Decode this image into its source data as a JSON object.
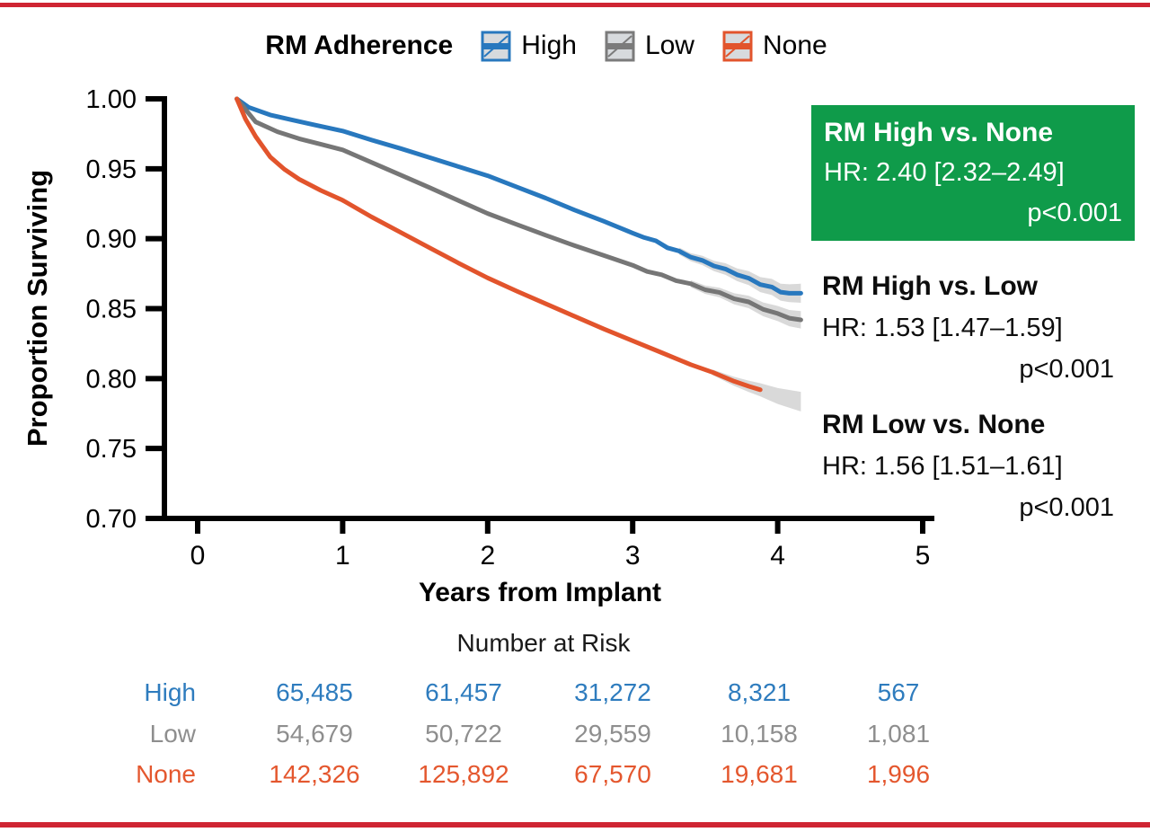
{
  "figure": {
    "colors": {
      "border_red": "#CF2533",
      "green_box": "#0F9B4A",
      "axis_black": "#000000",
      "ci_band_gray": "#D9D9D9"
    }
  },
  "legend": {
    "title": "RM Adherence",
    "items": [
      {
        "id": "high",
        "label": "High",
        "color": "#2878BE"
      },
      {
        "id": "low",
        "label": "Low",
        "color": "#7B7B7B"
      },
      {
        "id": "none",
        "label": "None",
        "color": "#E2542C"
      }
    ]
  },
  "chart_data": {
    "type": "line",
    "title": "",
    "xlabel": "Years from Implant",
    "ylabel": "Proportion Surviving",
    "xlim": [
      0,
      5
    ],
    "ylim": [
      0.7,
      1.0
    ],
    "xticks": [
      0,
      1,
      2,
      3,
      4,
      5
    ],
    "xtick_labels": [
      "0",
      "1",
      "2",
      "3",
      "4",
      "5"
    ],
    "yticks": [
      0.7,
      0.75,
      0.8,
      0.85,
      0.9,
      0.95,
      1.0
    ],
    "ytick_labels": [
      "0.70",
      "0.75",
      "0.80",
      "0.85",
      "0.90",
      "0.95",
      "1.00"
    ],
    "grid": false,
    "legend_position": "top",
    "series": [
      {
        "name": "High",
        "color": "#2878BE",
        "points": [
          [
            0.27,
            1.0
          ],
          [
            0.35,
            0.994
          ],
          [
            0.5,
            0.9885
          ],
          [
            0.65,
            0.985
          ],
          [
            0.8,
            0.9815
          ],
          [
            1.0,
            0.977
          ],
          [
            1.2,
            0.9705
          ],
          [
            1.4,
            0.9645
          ],
          [
            1.6,
            0.958
          ],
          [
            1.8,
            0.9515
          ],
          [
            2.0,
            0.945
          ],
          [
            2.2,
            0.937
          ],
          [
            2.4,
            0.929
          ],
          [
            2.6,
            0.9205
          ],
          [
            2.8,
            0.9125
          ],
          [
            3.0,
            0.904
          ],
          [
            3.08,
            0.9008
          ],
          [
            3.16,
            0.8985
          ],
          [
            3.24,
            0.8935
          ],
          [
            3.32,
            0.8912
          ],
          [
            3.4,
            0.8868
          ],
          [
            3.48,
            0.8845
          ],
          [
            3.56,
            0.8805
          ],
          [
            3.64,
            0.8783
          ],
          [
            3.72,
            0.8742
          ],
          [
            3.8,
            0.8718
          ],
          [
            3.88,
            0.8672
          ],
          [
            3.96,
            0.8655
          ],
          [
            4.02,
            0.8618
          ],
          [
            4.08,
            0.861
          ],
          [
            4.16,
            0.861
          ]
        ],
        "ci_band": {
          "start": 3.32,
          "hw0": 0.0025,
          "hw1": 0.0068,
          "tail": []
        }
      },
      {
        "name": "Low",
        "color": "#767676",
        "points": [
          [
            0.27,
            1.0
          ],
          [
            0.4,
            0.9835
          ],
          [
            0.55,
            0.9765
          ],
          [
            0.7,
            0.9715
          ],
          [
            0.85,
            0.9675
          ],
          [
            1.0,
            0.9635
          ],
          [
            1.2,
            0.9545
          ],
          [
            1.4,
            0.9455
          ],
          [
            1.6,
            0.9365
          ],
          [
            1.8,
            0.9272
          ],
          [
            2.0,
            0.918
          ],
          [
            2.2,
            0.9102
          ],
          [
            2.4,
            0.9025
          ],
          [
            2.6,
            0.895
          ],
          [
            2.8,
            0.888
          ],
          [
            3.0,
            0.881
          ],
          [
            3.1,
            0.8765
          ],
          [
            3.2,
            0.8742
          ],
          [
            3.3,
            0.87
          ],
          [
            3.4,
            0.8678
          ],
          [
            3.5,
            0.8635
          ],
          [
            3.6,
            0.8615
          ],
          [
            3.7,
            0.857
          ],
          [
            3.8,
            0.8548
          ],
          [
            3.9,
            0.8495
          ],
          [
            4.0,
            0.8465
          ],
          [
            4.08,
            0.8432
          ],
          [
            4.16,
            0.842
          ]
        ],
        "ci_band": {
          "start": 3.4,
          "hw0": 0.0025,
          "hw1": 0.0062,
          "tail": []
        }
      },
      {
        "name": "None",
        "color": "#E2542C",
        "points": [
          [
            0.27,
            1.0
          ],
          [
            0.33,
            0.9855
          ],
          [
            0.4,
            0.973
          ],
          [
            0.5,
            0.9585
          ],
          [
            0.6,
            0.9495
          ],
          [
            0.7,
            0.9425
          ],
          [
            0.85,
            0.9345
          ],
          [
            1.0,
            0.9275
          ],
          [
            1.2,
            0.9155
          ],
          [
            1.4,
            0.9045
          ],
          [
            1.6,
            0.8935
          ],
          [
            1.8,
            0.8825
          ],
          [
            2.0,
            0.872
          ],
          [
            2.2,
            0.8625
          ],
          [
            2.4,
            0.8535
          ],
          [
            2.6,
            0.8445
          ],
          [
            2.8,
            0.8355
          ],
          [
            3.0,
            0.827
          ],
          [
            3.2,
            0.8185
          ],
          [
            3.4,
            0.81
          ],
          [
            3.55,
            0.8045
          ],
          [
            3.7,
            0.798
          ],
          [
            3.8,
            0.7945
          ],
          [
            3.88,
            0.792
          ]
        ],
        "ci_band": {
          "start": 3.55,
          "hw0": 0.002,
          "hw1": 0.007,
          "tail": [
            [
              4.0,
              0.7875
            ],
            [
              4.16,
              0.7835
            ]
          ]
        }
      }
    ]
  },
  "annotations": [
    {
      "title": "RM High vs. None",
      "hr": "HR: 2.40 [2.32–2.49]",
      "p": "p<0.001",
      "style": "green-box"
    },
    {
      "title": "RM High vs. Low",
      "hr": "HR: 1.53 [1.47–1.59]",
      "p": "p<0.001",
      "style": "plain"
    },
    {
      "title": "RM Low vs. None",
      "hr": "HR: 1.56 [1.51–1.61]",
      "p": "p<0.001",
      "style": "plain"
    }
  ],
  "risk_table": {
    "title": "Number at Risk",
    "rows": [
      {
        "label": "High",
        "color": "#2E7CBE",
        "values": [
          "65,485",
          "61,457",
          "31,272",
          "8,321",
          "567"
        ]
      },
      {
        "label": "Low",
        "color": "#8E8E8E",
        "values": [
          "54,679",
          "50,722",
          "29,559",
          "10,158",
          "1,081"
        ]
      },
      {
        "label": "None",
        "color": "#E4572E",
        "values": [
          "142,326",
          "125,892",
          "67,570",
          "19,681",
          "1,996"
        ]
      }
    ]
  }
}
